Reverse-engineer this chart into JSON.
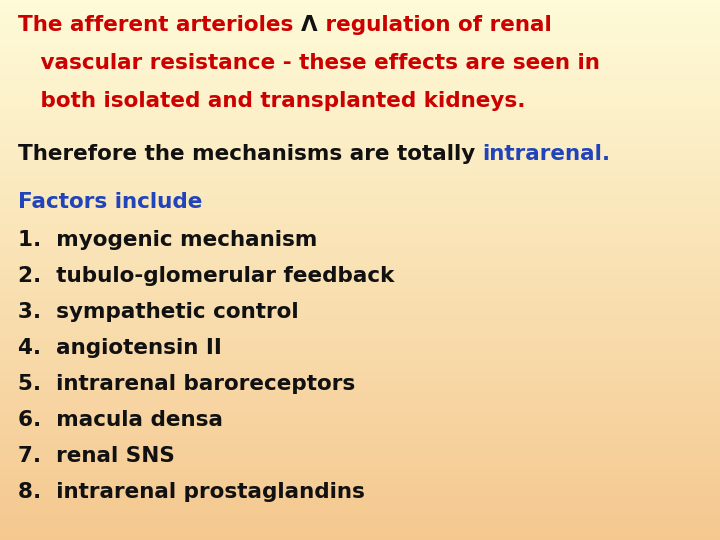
{
  "bg_color_top": "#fefbd8",
  "bg_color_bottom": "#f5c890",
  "title_part1": "The afferent arterioles ",
  "title_symbol": "Λ",
  "title_part2": " regulation of renal",
  "title_line2": "   vascular resistance - these effects are seen in",
  "title_line3": "   both isolated and transplanted kidneys.",
  "title_color": "#cc0000",
  "title_symbol_color": "#111111",
  "therefore_black": "Therefore the mechanisms are totally ",
  "therefore_blue": "intrarenal.",
  "therefore_black_color": "#111111",
  "therefore_blue_color": "#2244bb",
  "factors_header": "Factors include",
  "factors_color": "#2244bb",
  "items_color": "#111111",
  "items": [
    "1.  myogenic mechanism",
    "2.  tubulo-glomerular feedback",
    "3.  sympathetic control",
    "4.  angiotensin II",
    "5.  intrarenal baroreceptors",
    "6.  macula densa",
    "7.  renal SNS",
    "8.  intrarenal prostaglandins"
  ],
  "font_size": 15.5,
  "fig_width": 7.2,
  "fig_height": 5.4,
  "dpi": 100
}
